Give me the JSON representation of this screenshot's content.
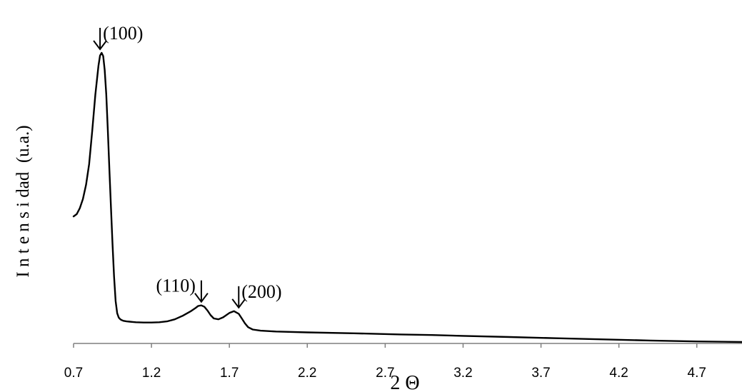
{
  "chart_data": {
    "type": "line",
    "xlabel": "2 Θ",
    "ylabel": "I n t e n s i dad  (u.a.)",
    "xlim": [
      0.7,
      4.99
    ],
    "ylim": [
      0,
      100
    ],
    "xticks": [
      "0.7",
      "1.2",
      "1.7",
      "2.2",
      "2.7",
      "3.2",
      "3.7",
      "4.2",
      "4.7"
    ],
    "grid": false,
    "legend": "none",
    "series": [
      {
        "color": "#000000",
        "x": [
          0.7,
          0.72,
          0.74,
          0.76,
          0.78,
          0.8,
          0.82,
          0.84,
          0.86,
          0.87,
          0.88,
          0.89,
          0.9,
          0.91,
          0.92,
          0.93,
          0.94,
          0.95,
          0.96,
          0.97,
          0.98,
          0.99,
          1.0,
          1.01,
          1.02,
          1.04,
          1.06,
          1.08,
          1.1,
          1.15,
          1.2,
          1.25,
          1.3,
          1.35,
          1.4,
          1.45,
          1.48,
          1.5,
          1.52,
          1.54,
          1.56,
          1.58,
          1.6,
          1.63,
          1.66,
          1.7,
          1.73,
          1.76,
          1.78,
          1.8,
          1.82,
          1.85,
          1.9,
          2.0,
          2.2,
          2.5,
          2.8,
          3.0,
          3.2,
          3.5,
          3.8,
          4.1,
          4.4,
          4.7,
          4.99
        ],
        "y": [
          43.7,
          44.5,
          46.5,
          49.7,
          54.6,
          61.7,
          73.3,
          85.6,
          95.6,
          99.1,
          100.0,
          98.9,
          94.1,
          85.7,
          73.3,
          59.7,
          46.7,
          34.5,
          23.1,
          14.6,
          10.4,
          8.9,
          8.3,
          8.0,
          7.8,
          7.6,
          7.5,
          7.4,
          7.3,
          7.2,
          7.2,
          7.3,
          7.6,
          8.3,
          9.5,
          11.0,
          12.1,
          12.9,
          13.1,
          12.6,
          11.3,
          9.7,
          8.6,
          8.3,
          9.0,
          10.5,
          11.1,
          10.2,
          8.6,
          6.9,
          5.6,
          4.8,
          4.4,
          4.1,
          3.8,
          3.5,
          3.1,
          2.9,
          2.6,
          2.2,
          1.8,
          1.4,
          1.0,
          0.7,
          0.5
        ]
      }
    ],
    "annotations": [
      {
        "label": "(100)",
        "x": 0.87,
        "y": 100.0
      },
      {
        "label": "(110)",
        "x": 1.52,
        "y": 13.1
      },
      {
        "label": "(200)",
        "x": 1.76,
        "y": 11.1
      }
    ]
  }
}
